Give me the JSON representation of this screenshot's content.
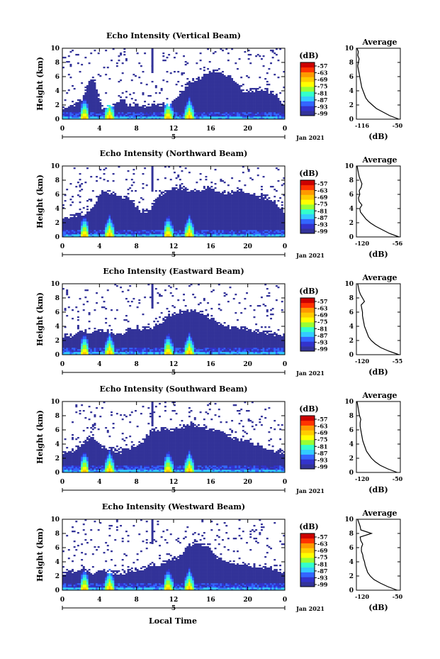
{
  "figure": {
    "month_label": "Jan 2021",
    "xlabel": "Local Time",
    "avg_title": "Average",
    "avg_xlabel": "(dB)",
    "cbar_title": "(dB)",
    "colorbar_ticks": [
      "-57",
      "-63",
      "-69",
      "-75",
      "-81",
      "-87",
      "-93",
      "-99"
    ],
    "colormap": [
      "#333399",
      "#3333cc",
      "#3366ff",
      "#33ccff",
      "#33ffcc",
      "#99ff33",
      "#ffff00",
      "#ffcc00",
      "#ff9900",
      "#ff3300",
      "#cc0000"
    ]
  },
  "chart_data": [
    {
      "type": "heatmap",
      "title": "Echo Intensity (Vertical Beam)",
      "ylabel": "Height (km)",
      "xlim": [
        0,
        24
      ],
      "ylim": [
        0,
        10
      ],
      "x_ticks": [
        "0",
        "4",
        "8",
        "12",
        "16",
        "20",
        "0"
      ],
      "date_tick": "5",
      "y_ticks": [
        "0",
        "2",
        "4",
        "6",
        "8",
        "10"
      ],
      "colorbar_ticks": [
        "-57",
        "-63",
        "-69",
        "-75",
        "-81",
        "-87",
        "-93",
        "-99"
      ],
      "echo_top_km": [
        1.5,
        1.8,
        3.0,
        6.2,
        1.6,
        1.7,
        2.8,
        1.8,
        2.0,
        1.8,
        2.2,
        1.9,
        3.5,
        5.2,
        5.8,
        6.6,
        6.8,
        6.2,
        4.8,
        3.8,
        4.2,
        4.2,
        3.4,
        1.6
      ],
      "peaks_h": [
        2.3,
        5.0,
        11.3,
        13.6
      ],
      "average": {
        "xlim": [
          -116,
          -50
        ],
        "x_ticks": [
          "-116",
          "-50"
        ],
        "y_ticks": [
          "0",
          "2",
          "4",
          "6",
          "8",
          "10"
        ],
        "height_km": [
          0,
          0.5,
          1,
          1.5,
          2,
          2.5,
          3,
          3.5,
          4,
          4.5,
          5,
          5.5,
          6,
          6.5,
          7,
          7.5,
          8,
          8.5,
          9,
          9.5,
          10
        ],
        "db": [
          -52,
          -66,
          -76,
          -86,
          -92,
          -98,
          -102,
          -104,
          -106,
          -108,
          -109,
          -110,
          -111,
          -112,
          -113,
          -114,
          -113,
          -112,
          -114,
          -113,
          -115
        ]
      }
    },
    {
      "type": "heatmap",
      "title": "Echo Intensity (Northward Beam)",
      "ylabel": "Height (km)",
      "xlim": [
        0,
        24
      ],
      "ylim": [
        0,
        10
      ],
      "x_ticks": [
        "0",
        "4",
        "8",
        "12",
        "16",
        "20",
        "0"
      ],
      "date_tick": "5",
      "y_ticks": [
        "0",
        "2",
        "4",
        "6",
        "8",
        "10"
      ],
      "colorbar_ticks": [
        "-57",
        "-63",
        "-69",
        "-75",
        "-81",
        "-87",
        "-93",
        "-99"
      ],
      "echo_top_km": [
        2.6,
        3.0,
        3.4,
        4.0,
        6.4,
        6.2,
        5.8,
        5.2,
        3.6,
        4.0,
        6.0,
        6.8,
        7.0,
        6.6,
        6.4,
        7.0,
        6.4,
        6.2,
        6.6,
        6.2,
        5.8,
        5.4,
        5.0,
        3.0
      ],
      "peaks_h": [
        2.3,
        5.0,
        11.3,
        13.6
      ],
      "average": {
        "xlim": [
          -120,
          -56
        ],
        "x_ticks": [
          "-120",
          "-56"
        ],
        "y_ticks": [
          "0",
          "2",
          "4",
          "6",
          "8",
          "10"
        ],
        "height_km": [
          0,
          0.5,
          1,
          1.5,
          2,
          2.5,
          3,
          3.5,
          4,
          4.5,
          5,
          5.5,
          6,
          6.5,
          7,
          7.5,
          8,
          8.5,
          9,
          9.5,
          10
        ],
        "db": [
          -58,
          -72,
          -82,
          -92,
          -100,
          -106,
          -110,
          -114,
          -115,
          -112,
          -116,
          -117,
          -115,
          -116,
          -113,
          -112,
          -114,
          -116,
          -117,
          -118,
          -119
        ]
      }
    },
    {
      "type": "heatmap",
      "title": "Echo Intensity (Eastward Beam)",
      "ylabel": "Height (km)",
      "xlim": [
        0,
        24
      ],
      "ylim": [
        0,
        10
      ],
      "x_ticks": [
        "0",
        "4",
        "8",
        "12",
        "16",
        "20",
        "0"
      ],
      "date_tick": "5",
      "y_ticks": [
        "0",
        "2",
        "4",
        "6",
        "8",
        "10"
      ],
      "colorbar_ticks": [
        "-57",
        "-63",
        "-69",
        "-75",
        "-81",
        "-87",
        "-93",
        "-99"
      ],
      "echo_top_km": [
        2.6,
        2.8,
        3.4,
        3.0,
        3.6,
        3.2,
        3.0,
        3.6,
        3.8,
        3.8,
        4.6,
        5.6,
        6.0,
        6.4,
        6.0,
        5.4,
        4.4,
        4.0,
        3.8,
        3.6,
        3.4,
        3.2,
        3.0,
        2.6
      ],
      "peaks_h": [
        2.3,
        5.0,
        11.3,
        13.6
      ],
      "average": {
        "xlim": [
          -120,
          -55
        ],
        "x_ticks": [
          "-120",
          "-55"
        ],
        "y_ticks": [
          "0",
          "2",
          "4",
          "6",
          "8",
          "10"
        ],
        "height_km": [
          0,
          0.5,
          1,
          1.5,
          2,
          2.5,
          3,
          3.5,
          4,
          4.5,
          5,
          5.5,
          6,
          6.5,
          7,
          7.5,
          8,
          8.5,
          9,
          9.5,
          10
        ],
        "db": [
          -57,
          -72,
          -84,
          -92,
          -98,
          -102,
          -104,
          -106,
          -108,
          -109,
          -110,
          -111,
          -111,
          -112,
          -113,
          -108,
          -111,
          -114,
          -116,
          -117,
          -118
        ]
      }
    },
    {
      "type": "heatmap",
      "title": "Echo Intensity (Southward Beam)",
      "ylabel": "Height (km)",
      "xlim": [
        0,
        24
      ],
      "ylim": [
        0,
        10
      ],
      "x_ticks": [
        "0",
        "4",
        "8",
        "12",
        "16",
        "20",
        "0"
      ],
      "date_tick": "5",
      "y_ticks": [
        "0",
        "2",
        "4",
        "6",
        "8",
        "10"
      ],
      "colorbar_ticks": [
        "-57",
        "-63",
        "-69",
        "-75",
        "-81",
        "-87",
        "-93",
        "-99"
      ],
      "echo_top_km": [
        2.8,
        3.0,
        4.0,
        5.2,
        3.6,
        3.2,
        3.0,
        3.6,
        4.0,
        5.8,
        6.2,
        6.0,
        6.4,
        6.8,
        6.6,
        6.4,
        5.8,
        5.4,
        4.6,
        4.6,
        3.8,
        3.4,
        3.2,
        2.8
      ],
      "peaks_h": [
        2.3,
        5.0,
        11.3,
        13.6
      ],
      "average": {
        "xlim": [
          -120,
          -50
        ],
        "x_ticks": [
          "-120",
          "-50"
        ],
        "y_ticks": [
          "0",
          "2",
          "4",
          "6",
          "8",
          "10"
        ],
        "height_km": [
          0,
          0.5,
          1,
          1.5,
          2,
          2.5,
          3,
          3.5,
          4,
          4.5,
          5,
          5.5,
          6,
          6.5,
          7,
          7.5,
          8,
          8.5,
          9,
          9.5,
          10
        ],
        "db": [
          -55,
          -70,
          -82,
          -90,
          -96,
          -100,
          -104,
          -106,
          -108,
          -110,
          -111,
          -112,
          -113,
          -114,
          -114,
          -113,
          -115,
          -116,
          -117,
          -118,
          -119
        ]
      }
    },
    {
      "type": "heatmap",
      "title": "Echo Intensity (Westward Beam)",
      "ylabel": "Height (km)",
      "xlim": [
        0,
        24
      ],
      "ylim": [
        0,
        10
      ],
      "x_ticks": [
        "0",
        "4",
        "8",
        "12",
        "16",
        "20",
        "0"
      ],
      "date_tick": "5",
      "y_ticks": [
        "0",
        "2",
        "4",
        "6",
        "8",
        "10"
      ],
      "colorbar_ticks": [
        "-57",
        "-63",
        "-69",
        "-75",
        "-81",
        "-87",
        "-93",
        "-99"
      ],
      "echo_top_km": [
        2.6,
        2.8,
        3.2,
        2.4,
        2.8,
        2.6,
        2.4,
        2.8,
        3.0,
        3.6,
        3.6,
        4.2,
        4.8,
        6.4,
        6.6,
        6.0,
        4.6,
        4.0,
        3.6,
        3.6,
        3.4,
        3.2,
        2.8,
        2.4
      ],
      "peaks_h": [
        2.3,
        5.0,
        11.3,
        13.6
      ],
      "average": {
        "xlim": [
          -120,
          -50
        ],
        "x_ticks": [
          "-120",
          "-50"
        ],
        "y_ticks": [
          "0",
          "2",
          "4",
          "6",
          "8",
          "10"
        ],
        "height_km": [
          0,
          0.5,
          1,
          1.5,
          2,
          2.5,
          3,
          3.5,
          4,
          4.5,
          5,
          5.5,
          6,
          6.5,
          7,
          7.5,
          8,
          8.5,
          9,
          9.5,
          10
        ],
        "db": [
          -55,
          -70,
          -82,
          -92,
          -98,
          -102,
          -104,
          -106,
          -107,
          -109,
          -110,
          -112,
          -112,
          -110,
          -113,
          -114,
          -96,
          -113,
          -114,
          -116,
          -118
        ]
      }
    }
  ]
}
